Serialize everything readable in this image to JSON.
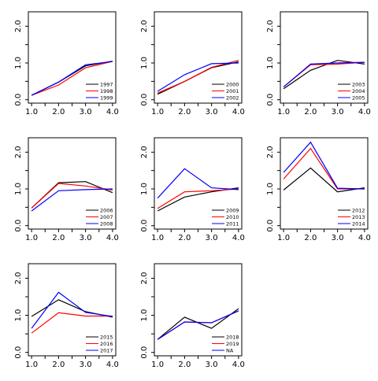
{
  "chart_data": [
    {
      "type": "line",
      "x": [
        1,
        2,
        3,
        4
      ],
      "xticks": [
        "1.0",
        "2.0",
        "3.0",
        "4.0"
      ],
      "yticks": [
        "0.0",
        "1.0",
        "2.0"
      ],
      "xlim": [
        1,
        4
      ],
      "ylim": [
        0,
        2.3
      ],
      "legend_position": "bottom-right",
      "series": [
        {
          "name": "1997",
          "color": "#000000",
          "values": [
            0.12,
            0.48,
            0.92,
            1.05
          ]
        },
        {
          "name": "1998",
          "color": "#ff0000",
          "values": [
            0.12,
            0.4,
            0.87,
            1.04
          ]
        },
        {
          "name": "1999",
          "color": "#0000ff",
          "values": [
            0.12,
            0.48,
            0.95,
            1.04
          ]
        }
      ]
    },
    {
      "type": "line",
      "x": [
        1,
        2,
        3,
        4
      ],
      "xticks": [
        "1.0",
        "2.0",
        "3.0",
        "4.0"
      ],
      "yticks": [
        "0.0",
        "1.0",
        "2.0"
      ],
      "xlim": [
        1,
        4
      ],
      "ylim": [
        0,
        2.3
      ],
      "legend_position": "bottom-right",
      "series": [
        {
          "name": "2000",
          "color": "#000000",
          "values": [
            0.15,
            0.5,
            0.87,
            1.03
          ]
        },
        {
          "name": "2001",
          "color": "#ff0000",
          "values": [
            0.18,
            0.5,
            0.88,
            1.07
          ]
        },
        {
          "name": "2002",
          "color": "#0000ff",
          "values": [
            0.23,
            0.68,
            0.98,
            1.0
          ]
        }
      ]
    },
    {
      "type": "line",
      "x": [
        1,
        2,
        3,
        4
      ],
      "xticks": [
        "1.0",
        "2.0",
        "3.0",
        "4.0"
      ],
      "yticks": [
        "0.0",
        "1.0",
        "2.0"
      ],
      "xlim": [
        1,
        4
      ],
      "ylim": [
        0,
        2.3
      ],
      "legend_position": "bottom-right",
      "series": [
        {
          "name": "2003",
          "color": "#000000",
          "values": [
            0.3,
            0.8,
            1.07,
            0.97
          ]
        },
        {
          "name": "2004",
          "color": "#ff0000",
          "values": [
            0.35,
            0.95,
            0.97,
            1.02
          ]
        },
        {
          "name": "2005",
          "color": "#0000ff",
          "values": [
            0.35,
            0.97,
            1.0,
            1.02
          ]
        }
      ]
    },
    {
      "type": "line",
      "x": [
        1,
        2,
        3,
        4
      ],
      "xticks": [
        "1.0",
        "2.0",
        "3.0",
        "4.0"
      ],
      "yticks": [
        "0.0",
        "1.0",
        "2.0"
      ],
      "xlim": [
        1,
        4
      ],
      "ylim": [
        0,
        2.3
      ],
      "legend_position": "bottom-right",
      "series": [
        {
          "name": "2006",
          "color": "#000000",
          "values": [
            0.48,
            1.17,
            1.2,
            0.9
          ]
        },
        {
          "name": "2007",
          "color": "#ff0000",
          "values": [
            0.48,
            1.15,
            1.08,
            0.97
          ]
        },
        {
          "name": "2008",
          "color": "#0000ff",
          "values": [
            0.4,
            0.95,
            0.98,
            1.0
          ]
        }
      ]
    },
    {
      "type": "line",
      "x": [
        1,
        2,
        3,
        4
      ],
      "xticks": [
        "1.0",
        "2.0",
        "3.0",
        "4.0"
      ],
      "yticks": [
        "0.0",
        "1.0",
        "2.0"
      ],
      "xlim": [
        1,
        4
      ],
      "ylim": [
        0,
        2.3
      ],
      "legend_position": "bottom-right",
      "series": [
        {
          "name": "2009",
          "color": "#000000",
          "values": [
            0.4,
            0.78,
            0.92,
            1.03
          ]
        },
        {
          "name": "2010",
          "color": "#ff0000",
          "values": [
            0.47,
            0.92,
            0.95,
            1.0
          ]
        },
        {
          "name": "2011",
          "color": "#0000ff",
          "values": [
            0.75,
            1.55,
            1.03,
            0.98
          ]
        }
      ]
    },
    {
      "type": "line",
      "x": [
        1,
        2,
        3,
        4
      ],
      "xticks": [
        "1.0",
        "2.0",
        "3.0",
        "4.0"
      ],
      "yticks": [
        "0.0",
        "1.0",
        "2.0"
      ],
      "xlim": [
        1,
        4
      ],
      "ylim": [
        0,
        2.3
      ],
      "legend_position": "bottom-right",
      "series": [
        {
          "name": "2012",
          "color": "#000000",
          "values": [
            0.97,
            1.57,
            0.92,
            1.03
          ]
        },
        {
          "name": "2013",
          "color": "#ff0000",
          "values": [
            1.27,
            2.1,
            1.0,
            1.0
          ]
        },
        {
          "name": "2014",
          "color": "#0000ff",
          "values": [
            1.45,
            2.27,
            1.02,
            1.0
          ]
        }
      ]
    },
    {
      "type": "line",
      "x": [
        1,
        2,
        3,
        4
      ],
      "xticks": [
        "1.0",
        "2.0",
        "3.0",
        "4.0"
      ],
      "yticks": [
        "0.0",
        "1.0",
        "2.0"
      ],
      "xlim": [
        1,
        4
      ],
      "ylim": [
        0,
        2.3
      ],
      "legend_position": "bottom-right",
      "series": [
        {
          "name": "2015",
          "color": "#000000",
          "values": [
            0.97,
            1.42,
            1.1,
            0.95
          ]
        },
        {
          "name": "2016",
          "color": "#ff0000",
          "values": [
            0.52,
            1.07,
            0.98,
            0.98
          ]
        },
        {
          "name": "2017",
          "color": "#0000ff",
          "values": [
            0.65,
            1.62,
            1.08,
            0.97
          ]
        }
      ]
    },
    {
      "type": "line",
      "x": [
        1,
        2,
        3,
        4
      ],
      "xticks": [
        "1.0",
        "2.0",
        "3.0",
        "4.0"
      ],
      "yticks": [
        "0.0",
        "1.0",
        "2.0"
      ],
      "xlim": [
        1,
        4
      ],
      "ylim": [
        0,
        2.3
      ],
      "legend_position": "bottom-right",
      "series": [
        {
          "name": "2018",
          "color": "#000000",
          "values": [
            0.35,
            0.95,
            0.65,
            1.18
          ]
        },
        {
          "name": "2019",
          "color": "#ff0000",
          "values": [
            0.35,
            0.82,
            0.8,
            1.12
          ]
        },
        {
          "name": "NA",
          "color": "#0000ff",
          "values": [
            0.35,
            0.82,
            0.8,
            1.12
          ]
        }
      ]
    }
  ]
}
